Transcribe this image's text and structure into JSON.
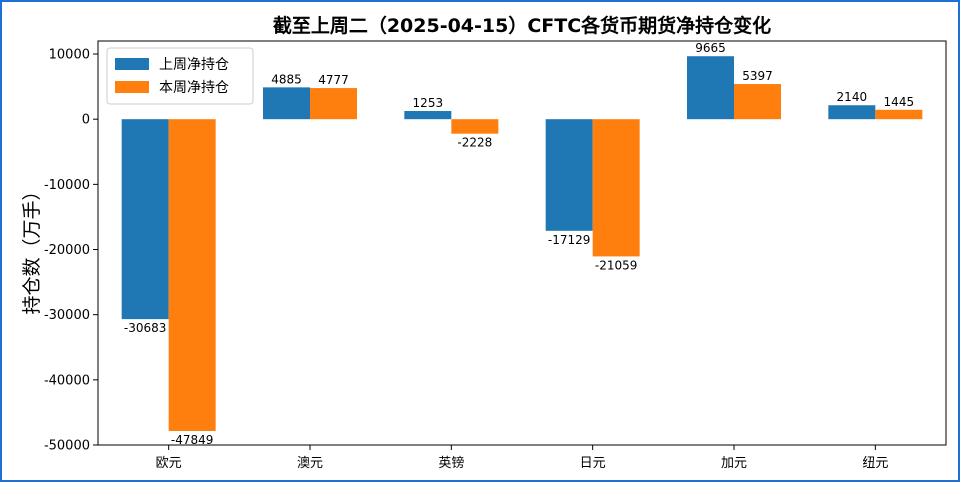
{
  "chart_data": {
    "type": "bar",
    "title": "截至上周二（2025-04-15）CFTC各货币期货净持仓变化",
    "xlabel": "",
    "ylabel": "持仓数（万手）",
    "categories": [
      "欧元",
      "澳元",
      "英镑",
      "日元",
      "加元",
      "纽元"
    ],
    "series": [
      {
        "name": "上周净持仓",
        "color": "#1f77b4",
        "values": [
          -30683,
          4885,
          1253,
          -17129,
          9665,
          2140
        ]
      },
      {
        "name": "本周净持仓",
        "color": "#ff7f0e",
        "values": [
          -47849,
          4777,
          -2228,
          -21059,
          5397,
          1445
        ]
      }
    ],
    "ylim": [
      -50000,
      12000
    ],
    "yticks": [
      -50000,
      -40000,
      -30000,
      -20000,
      -10000,
      0,
      10000
    ],
    "grid": false,
    "legend": "top-left"
  }
}
